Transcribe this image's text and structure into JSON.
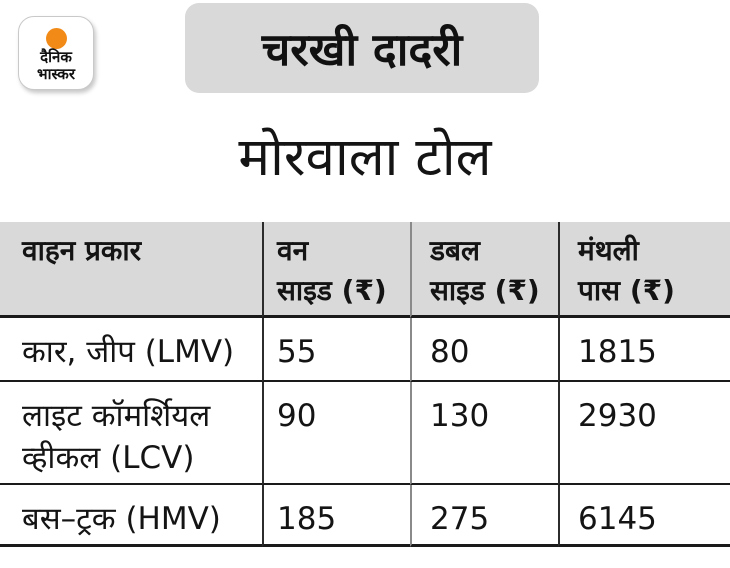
{
  "logo": {
    "line1": "दैनिक",
    "line2": "भास्कर"
  },
  "masthead": {
    "city": "चरखी दादरी"
  },
  "title": "मोरवाला टोल",
  "table_display": {
    "header_lines": [
      {
        "line1": "वाहन प्रकार",
        "line2": ""
      },
      {
        "line1": "वन",
        "line2": "साइड (₹)"
      },
      {
        "line1": "डबल",
        "line2": "साइड (₹)"
      },
      {
        "line1": "मंथली",
        "line2": "पास (₹)"
      }
    ]
  },
  "chart_data": {
    "type": "table",
    "title": "मोरवाला टोल",
    "region_tag": "चरखी दादरी",
    "columns": [
      "वाहन प्रकार",
      "वन साइड (₹)",
      "डबल साइड (₹)",
      "मंथली पास (₹)"
    ],
    "rows": [
      [
        "कार, जीप (LMV)",
        55,
        80,
        1815
      ],
      [
        "लाइट कॉमर्शियल व्हीकल (LCV)",
        90,
        130,
        2930
      ],
      [
        "बस–ट्रक (HMV)",
        185,
        275,
        6145
      ]
    ]
  },
  "colors": {
    "accent_orange": "#F28A18",
    "panel_gray": "#D9D9D9",
    "line_dark": "#1A1A1A",
    "line_gray": "#8A8A8A",
    "text": "#141414"
  }
}
